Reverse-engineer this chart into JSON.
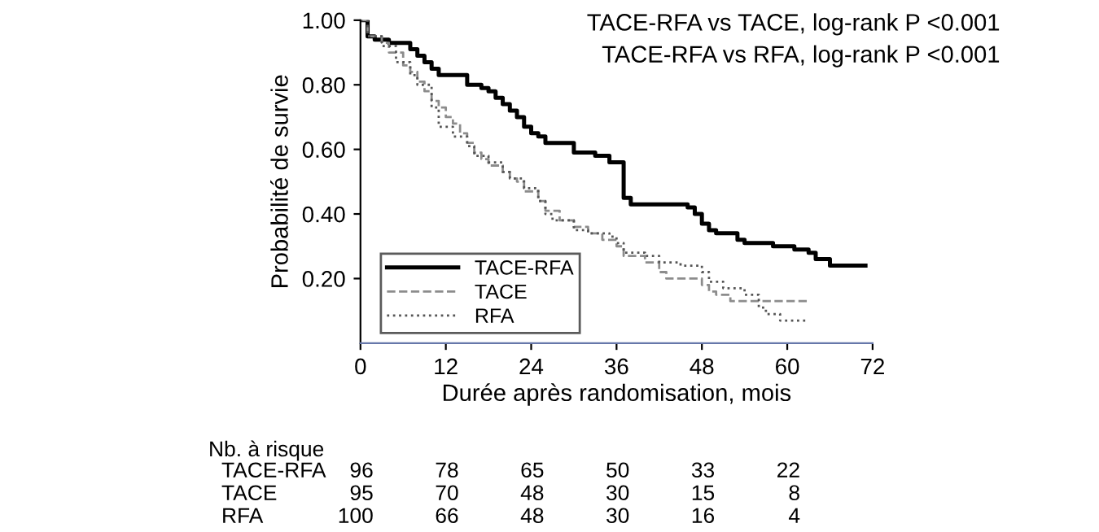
{
  "chart_data": {
    "type": "step",
    "xlabel": "Durée après randomisation, mois",
    "ylabel": "Probabilité de survie",
    "xlim": [
      0,
      72
    ],
    "ylim": [
      0,
      1.0
    ],
    "xticks": [
      0,
      12,
      24,
      36,
      48,
      60,
      72
    ],
    "yticks": [
      {
        "value": 0.2,
        "label": "0.20"
      },
      {
        "value": 0.4,
        "label": "0.40"
      },
      {
        "value": 0.6,
        "label": "0.60"
      },
      {
        "value": 0.8,
        "label": "0.80"
      },
      {
        "value": 1.0,
        "label": "1.00"
      }
    ],
    "grid": false,
    "legend": "bottom left",
    "marker": "none",
    "series": [
      {
        "name": "TACE-RFA",
        "color": "#000000",
        "line_style": "solid",
        "x": [
          0,
          1,
          2,
          4,
          7,
          8,
          9,
          10,
          11,
          15,
          17,
          18,
          19,
          20,
          21,
          22,
          23,
          24,
          25,
          26,
          30,
          33,
          35,
          37,
          38,
          46,
          47,
          48,
          49,
          50,
          53,
          54,
          58,
          61,
          63,
          64,
          66,
          71
        ],
        "values": [
          1.0,
          0.95,
          0.94,
          0.93,
          0.91,
          0.89,
          0.87,
          0.85,
          0.83,
          0.8,
          0.79,
          0.78,
          0.76,
          0.74,
          0.72,
          0.7,
          0.67,
          0.65,
          0.64,
          0.62,
          0.59,
          0.58,
          0.56,
          0.45,
          0.43,
          0.42,
          0.4,
          0.37,
          0.35,
          0.34,
          0.32,
          0.31,
          0.3,
          0.29,
          0.28,
          0.26,
          0.24,
          0.24
        ]
      },
      {
        "name": "TACE",
        "color": "#8c8c8c",
        "line_style": "dashed",
        "x": [
          0,
          1,
          3,
          4,
          6,
          7,
          8,
          9,
          10,
          11,
          12,
          13,
          14,
          15,
          16,
          17,
          18,
          20,
          21,
          22,
          23,
          25,
          26,
          28,
          30,
          32,
          34,
          36,
          37,
          40,
          42,
          43,
          47,
          48,
          49,
          50,
          52,
          63
        ],
        "values": [
          1.0,
          0.95,
          0.93,
          0.9,
          0.86,
          0.84,
          0.81,
          0.78,
          0.75,
          0.73,
          0.7,
          0.68,
          0.65,
          0.62,
          0.59,
          0.57,
          0.55,
          0.53,
          0.51,
          0.5,
          0.47,
          0.44,
          0.41,
          0.38,
          0.36,
          0.34,
          0.32,
          0.3,
          0.27,
          0.25,
          0.22,
          0.2,
          0.2,
          0.18,
          0.16,
          0.15,
          0.13,
          0.13
        ]
      },
      {
        "name": "RFA",
        "color": "#555555",
        "line_style": "dotted",
        "x": [
          0,
          1,
          3,
          5,
          7,
          8,
          10,
          11,
          13,
          15,
          16,
          18,
          20,
          21,
          23,
          25,
          26,
          27,
          30,
          32,
          35,
          36,
          37,
          40,
          42,
          45,
          48,
          49,
          51,
          54,
          56,
          57,
          59,
          63
        ],
        "values": [
          1.0,
          0.95,
          0.92,
          0.87,
          0.83,
          0.8,
          0.73,
          0.67,
          0.64,
          0.61,
          0.58,
          0.56,
          0.53,
          0.51,
          0.48,
          0.44,
          0.4,
          0.38,
          0.35,
          0.34,
          0.33,
          0.31,
          0.28,
          0.27,
          0.25,
          0.24,
          0.22,
          0.19,
          0.17,
          0.15,
          0.11,
          0.09,
          0.07,
          0.07
        ]
      }
    ],
    "annotations": [
      "TACE-RFA vs TACE, log-rank P <0.001",
      "TACE-RFA vs RFA, log-rank P <0.001",
      "Nb. à risque",
      "TACE-RFA",
      "96",
      "78",
      "65",
      "50",
      "33",
      "22",
      "TACE",
      "95",
      "70",
      "48",
      "30",
      "15",
      "8",
      "RFA",
      "100",
      "66",
      "48",
      "30",
      "16",
      "4"
    ]
  }
}
